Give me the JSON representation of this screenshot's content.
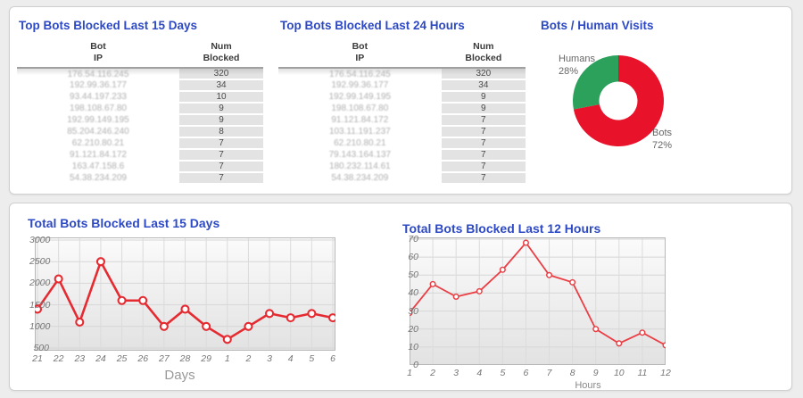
{
  "top_panel": {
    "tables": [
      {
        "title": "Top Bots Blocked Last 15 Days",
        "headers": {
          "col1_line1": "Bot",
          "col1_line2": "IP",
          "col2_line1": "Num",
          "col2_line2": "Blocked"
        },
        "rows": [
          {
            "ip": "176.54.116.245",
            "num": "320"
          },
          {
            "ip": "192.99.36.177",
            "num": "34"
          },
          {
            "ip": "93.44.197.233",
            "num": "10"
          },
          {
            "ip": "198.108.67.80",
            "num": "9"
          },
          {
            "ip": "192.99.149.195",
            "num": "9"
          },
          {
            "ip": "85.204.246.240",
            "num": "8"
          },
          {
            "ip": "62.210.80.21",
            "num": "7"
          },
          {
            "ip": "91.121.84.172",
            "num": "7"
          },
          {
            "ip": "163.47.158.6",
            "num": "7"
          },
          {
            "ip": "54.38.234.209",
            "num": "7"
          }
        ]
      },
      {
        "title": "Top Bots Blocked Last 24 Hours",
        "headers": {
          "col1_line1": "Bot",
          "col1_line2": "IP",
          "col2_line1": "Num",
          "col2_line2": "Blocked"
        },
        "rows": [
          {
            "ip": "176.54.116.245",
            "num": "320"
          },
          {
            "ip": "192.99.36.177",
            "num": "34"
          },
          {
            "ip": "192.99.149.195",
            "num": "9"
          },
          {
            "ip": "198.108.67.80",
            "num": "9"
          },
          {
            "ip": "91.121.84.172",
            "num": "7"
          },
          {
            "ip": "103.11.191.237",
            "num": "7"
          },
          {
            "ip": "62.210.80.21",
            "num": "7"
          },
          {
            "ip": "79.143.164.137",
            "num": "7"
          },
          {
            "ip": "180.232.114.61",
            "num": "7"
          },
          {
            "ip": "54.38.234.209",
            "num": "7"
          }
        ]
      }
    ]
  },
  "chart_data": [
    {
      "type": "pie",
      "title": "Bots / Human Visits",
      "donut": true,
      "legend_position": "none",
      "slices": [
        {
          "label": "Bots",
          "pct": 72,
          "color": "#e8132b"
        },
        {
          "label": "Humans",
          "pct": 28,
          "color": "#2ba15b"
        }
      ],
      "labels": {
        "humans": "Humans",
        "humans_pct": "28%",
        "bots": "Bots",
        "bots_pct": "72%"
      }
    },
    {
      "type": "line",
      "title": "Total Bots Blocked Last 15 Days",
      "xlabel": "Days",
      "ylabel": "",
      "categories": [
        "21",
        "22",
        "23",
        "24",
        "25",
        "26",
        "27",
        "28",
        "29",
        "1",
        "2",
        "3",
        "4",
        "5",
        "6"
      ],
      "values": [
        1400,
        2100,
        1100,
        2500,
        1600,
        1600,
        1000,
        1400,
        1000,
        700,
        1000,
        1300,
        1200,
        1300,
        1200
      ],
      "ylim": [
        500,
        3000
      ],
      "ytick_step": 500,
      "grid": true,
      "line_color": "#e62a31"
    },
    {
      "type": "line",
      "title": "Total Bots Blocked Last 12 Hours",
      "xlabel": "Hours",
      "ylabel": "",
      "categories": [
        "1",
        "2",
        "3",
        "4",
        "5",
        "6",
        "7",
        "8",
        "9",
        "10",
        "11",
        "12"
      ],
      "values": [
        29,
        45,
        38,
        41,
        53,
        68,
        50,
        46,
        20,
        12,
        18,
        11
      ],
      "ylim": [
        0,
        70
      ],
      "ytick_step": 10,
      "grid": true,
      "line_color": "#ea3d44"
    }
  ]
}
